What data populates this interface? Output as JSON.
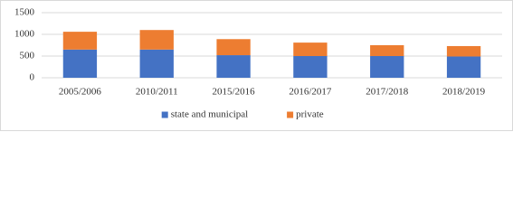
{
  "chart_data": {
    "type": "stacked_bar",
    "categories": [
      "2005/2006",
      "2010/2011",
      "2015/2016",
      "2016/2017",
      "2017/2018",
      "2018/2019"
    ],
    "series": [
      {
        "name": "state and municipal",
        "color": "#4472c4",
        "values": [
          650,
          650,
          520,
          500,
          500,
          490
        ]
      },
      {
        "name": "private",
        "color": "#ed7d31",
        "values": [
          410,
          450,
          370,
          310,
          250,
          240
        ]
      }
    ],
    "ylim": [
      0,
      1500
    ],
    "yticks": [
      0,
      500,
      1000,
      1500
    ],
    "grid": true,
    "legend": "bottom"
  }
}
